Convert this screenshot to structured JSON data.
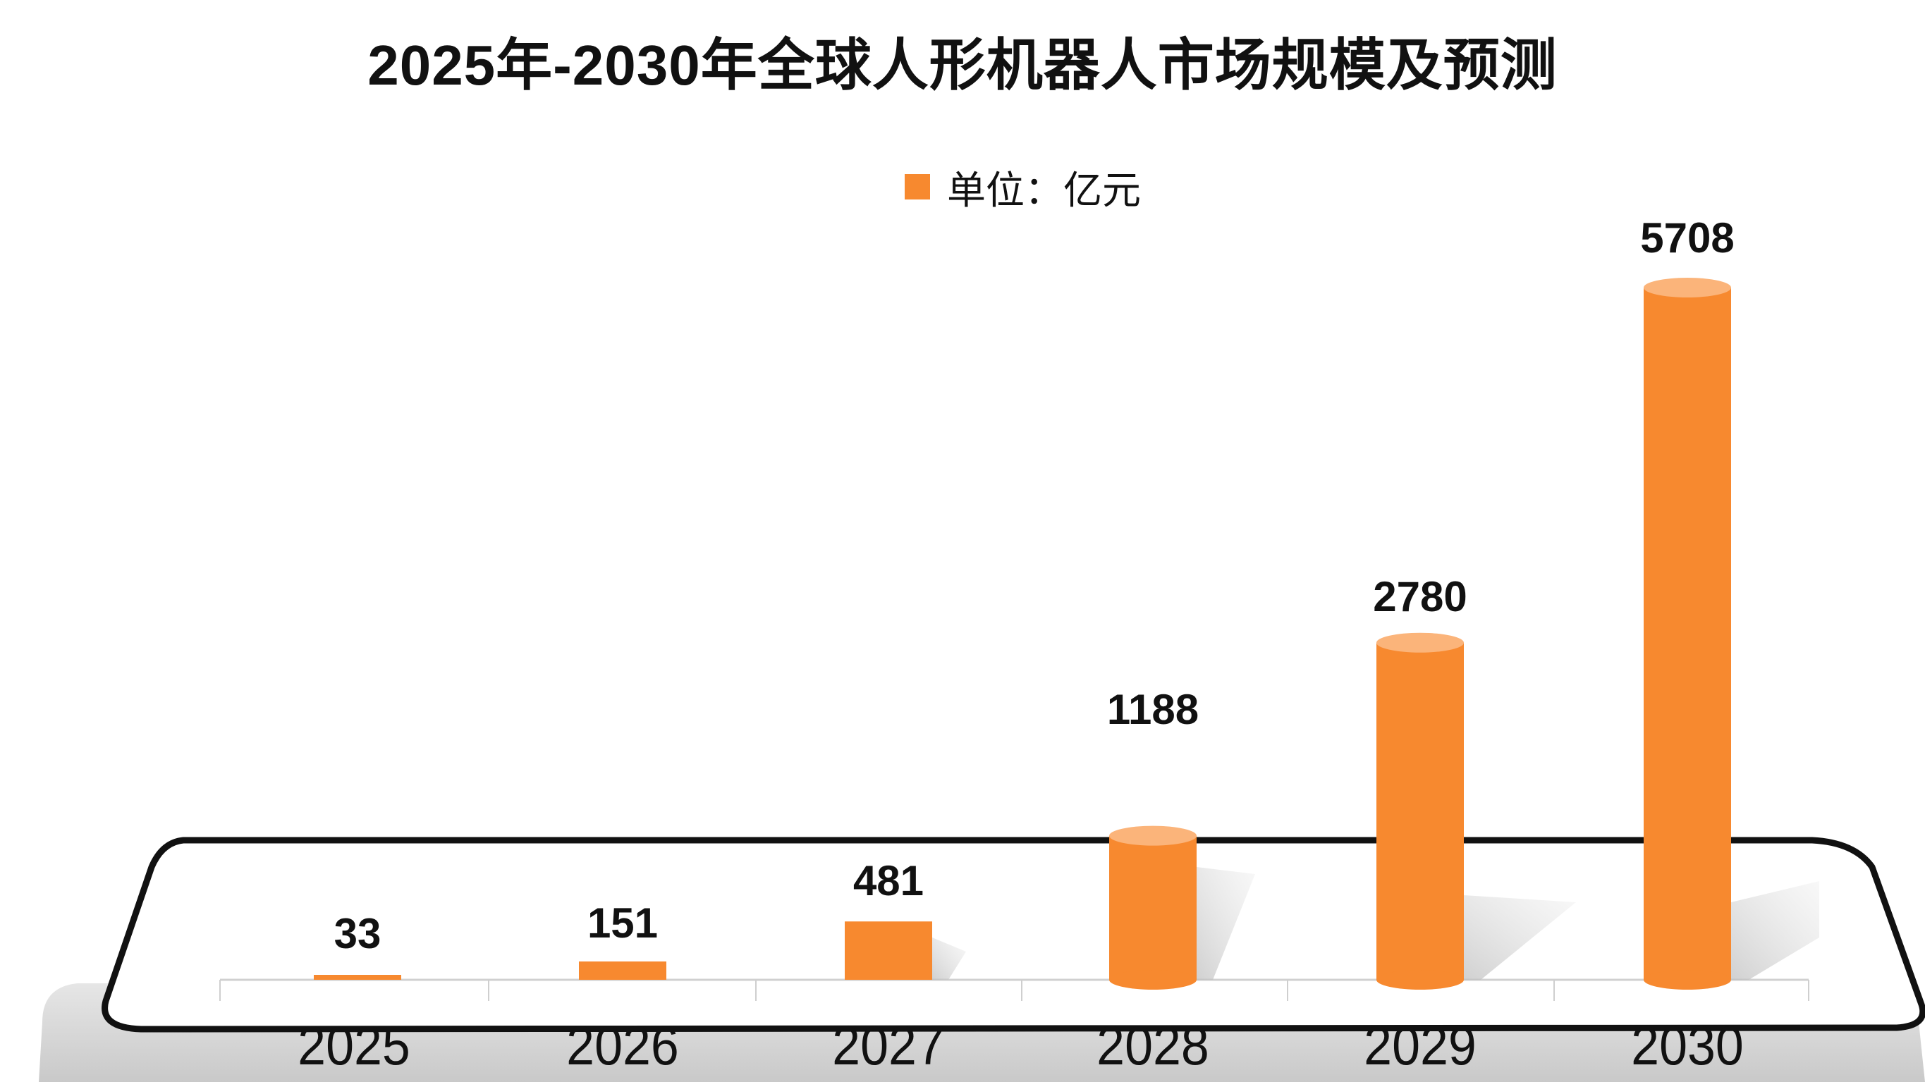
{
  "title": "2025年-2030年全球人形机器人市场规模及预测",
  "legend": {
    "label": "单位：亿元",
    "color": "#F7892F"
  },
  "colors": {
    "bar": "#F7892F",
    "bar_top": "#FBB47A",
    "outline": "#111111",
    "platform_base": "#D4D4D4"
  },
  "chart_data": {
    "type": "bar",
    "title": "2025年-2030年全球人形机器人市场规模及预测",
    "xlabel": "",
    "ylabel": "",
    "legend": [
      "单位：亿元"
    ],
    "legend_position": "top",
    "grid": false,
    "categories": [
      "2025",
      "2026",
      "2027",
      "2028",
      "2029",
      "2030"
    ],
    "values": [
      33,
      151,
      481,
      1188,
      2780,
      5708
    ],
    "series": [
      {
        "name": "单位：亿元",
        "values": [
          33,
          151,
          481,
          1188,
          2780,
          5708
        ]
      }
    ],
    "ylim": [
      0,
      6000
    ]
  },
  "labels": {
    "values": [
      "33",
      "151",
      "481",
      "1188",
      "2780",
      "5708"
    ],
    "years": [
      "2025",
      "2026",
      "2027",
      "2028",
      "2029",
      "2030"
    ]
  }
}
